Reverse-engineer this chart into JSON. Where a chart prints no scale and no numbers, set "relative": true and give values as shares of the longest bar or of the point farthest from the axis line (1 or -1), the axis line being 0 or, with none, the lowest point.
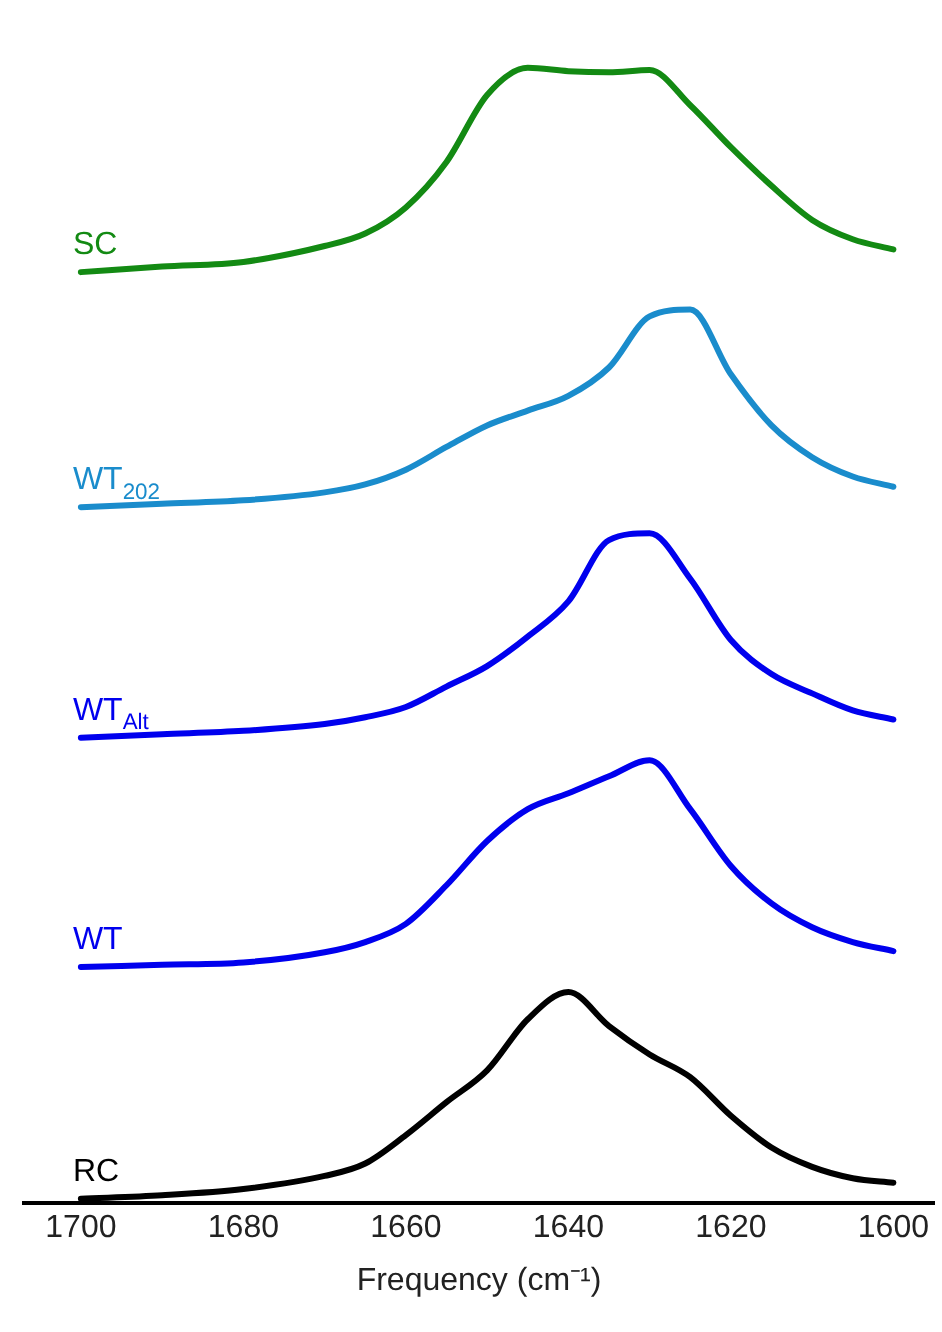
{
  "chart_data": {
    "type": "line",
    "relative": true,
    "xlabel": "Frequency (cm⁻¹)",
    "xlim": [
      1707,
      1595
    ],
    "xticks": [
      1700,
      1680,
      1660,
      1640,
      1620,
      1600
    ],
    "grid": false,
    "legend": false,
    "marker": "none",
    "line_style": "solid",
    "x": [
      1700,
      1690,
      1680,
      1670,
      1665,
      1660,
      1655,
      1650,
      1645,
      1640,
      1635,
      1630,
      1625,
      1620,
      1615,
      1610,
      1605,
      1600
    ],
    "series": [
      {
        "name": "SC",
        "color": "#138a13",
        "values": [
          0.82,
          0.825,
          0.829,
          0.843,
          0.854,
          0.877,
          0.917,
          0.976,
          1,
          0.997,
          0.996,
          0.998,
          0.967,
          0.93,
          0.896,
          0.866,
          0.849,
          0.84
        ]
      },
      {
        "name": "WT$_{202}$",
        "color": "#1a8ccc",
        "values": [
          0.613,
          0.616,
          0.619,
          0.626,
          0.633,
          0.646,
          0.666,
          0.685,
          0.698,
          0.711,
          0.736,
          0.781,
          0.787,
          0.73,
          0.685,
          0.657,
          0.64,
          0.631
        ]
      },
      {
        "name": "WT$_{Alt}$",
        "color": "#0000ee",
        "values": [
          0.41,
          0.413,
          0.416,
          0.422,
          0.428,
          0.437,
          0.455,
          0.473,
          0.499,
          0.53,
          0.584,
          0.59,
          0.55,
          0.496,
          0.466,
          0.449,
          0.434,
          0.426
        ]
      },
      {
        "name": "WT",
        "color": "#0000ee",
        "values": [
          0.208,
          0.21,
          0.212,
          0.221,
          0.23,
          0.246,
          0.28,
          0.319,
          0.347,
          0.361,
          0.376,
          0.39,
          0.347,
          0.297,
          0.264,
          0.243,
          0.23,
          0.222
        ]
      },
      {
        "name": "RC",
        "color": "#000000",
        "values": [
          0.004,
          0.007,
          0.0125,
          0.024,
          0.035,
          0.06,
          0.089,
          0.117,
          0.162,
          0.186,
          0.156,
          0.131,
          0.111,
          0.077,
          0.049,
          0.032,
          0.022,
          0.018
        ]
      }
    ]
  }
}
